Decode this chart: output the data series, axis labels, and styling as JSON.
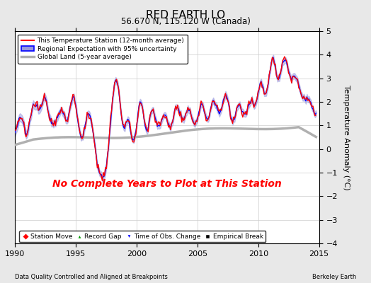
{
  "title": "RED EARTH LO",
  "subtitle": "56.670 N, 115.120 W (Canada)",
  "xlabel_left": "Data Quality Controlled and Aligned at Breakpoints",
  "xlabel_right": "Berkeley Earth",
  "ylabel": "Temperature Anomaly (°C)",
  "xlim": [
    1990,
    2015
  ],
  "ylim": [
    -4,
    5
  ],
  "yticks": [
    -4,
    -3,
    -2,
    -1,
    0,
    1,
    2,
    3,
    4,
    5
  ],
  "xticks": [
    1990,
    1995,
    2000,
    2005,
    2010,
    2015
  ],
  "annotation": "No Complete Years to Plot at This Station",
  "annotation_color": "#FF0000",
  "bg_color": "#e8e8e8",
  "plot_bg_color": "#ffffff",
  "legend_entries": [
    {
      "label": "This Temperature Station (12-month average)",
      "color": "#FF0000",
      "lw": 1.5
    },
    {
      "label": "Regional Expectation with 95% uncertainty",
      "line_color": "#0000FF",
      "fill_color": "#9999dd",
      "lw": 1.5
    },
    {
      "label": "Global Land (5-year average)",
      "color": "#aaaaaa",
      "lw": 2.5
    }
  ],
  "marker_legend": [
    {
      "label": "Station Move",
      "color": "#FF0000",
      "marker": "D"
    },
    {
      "label": "Record Gap",
      "color": "#009900",
      "marker": "^"
    },
    {
      "label": "Time of Obs. Change",
      "color": "#0000FF",
      "marker": "v"
    },
    {
      "label": "Empirical Break",
      "color": "#000000",
      "marker": "s"
    }
  ],
  "regional_line_color": "#0000FF",
  "regional_fill_color": "#9999dd",
  "station_line_color": "#FF0000",
  "global_line_color": "#b0b0b0"
}
